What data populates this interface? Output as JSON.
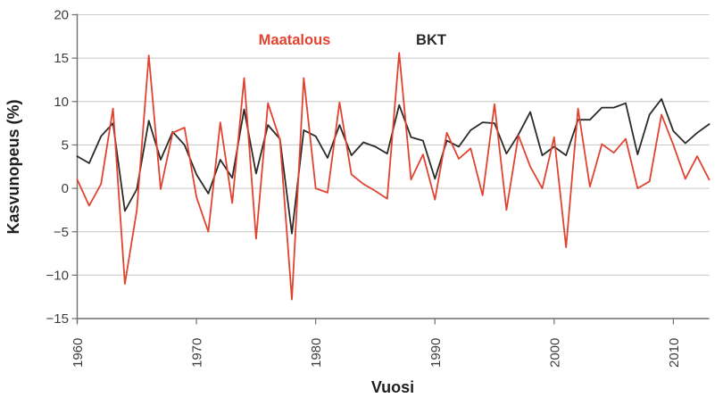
{
  "chart_data": {
    "type": "line",
    "title": "",
    "xlabel": "Vuosi",
    "ylabel": "Kasvunopeus (%)",
    "xlim": [
      1960,
      2013
    ],
    "ylim": [
      -15,
      20
    ],
    "grid": true,
    "legend_position": "top-inline",
    "x_ticks": [
      1960,
      1970,
      1980,
      1990,
      2000,
      2010
    ],
    "y_ticks": [
      20,
      15,
      10,
      5,
      0,
      -5,
      -10,
      -15
    ],
    "years": [
      1960,
      1961,
      1962,
      1963,
      1964,
      1965,
      1966,
      1967,
      1968,
      1969,
      1970,
      1971,
      1972,
      1973,
      1974,
      1975,
      1976,
      1977,
      1978,
      1979,
      1980,
      1981,
      1982,
      1983,
      1984,
      1985,
      1986,
      1987,
      1988,
      1989,
      1990,
      1991,
      1992,
      1993,
      1994,
      1995,
      1996,
      1997,
      1998,
      1999,
      2000,
      2001,
      2002,
      2003,
      2004,
      2005,
      2006,
      2007,
      2008,
      2009,
      2010,
      2011,
      2012,
      2013
    ],
    "series": [
      {
        "name": "Maatalous",
        "color": "#e0432f",
        "values": [
          1.0,
          -2.0,
          0.5,
          9.2,
          -11.0,
          -2.5,
          15.3,
          -0.1,
          6.4,
          7.0,
          -1.0,
          -5.0,
          7.6,
          -1.7,
          12.7,
          -5.8,
          9.8,
          5.6,
          -12.8,
          12.7,
          0.0,
          -0.5,
          9.9,
          1.6,
          0.5,
          -0.3,
          -1.2,
          15.6,
          1.0,
          3.9,
          -1.3,
          6.4,
          3.4,
          4.6,
          -0.8,
          9.7,
          -2.5,
          6.1,
          2.5,
          0.0,
          5.9,
          -6.8,
          9.2,
          0.2,
          5.1,
          4.1,
          5.7,
          0.0,
          0.8,
          8.5,
          5.0,
          1.1,
          3.7,
          1.0
        ]
      },
      {
        "name": "BKT",
        "color": "#2b2a28",
        "values": [
          3.7,
          2.9,
          6.0,
          7.5,
          -2.6,
          -0.1,
          7.8,
          3.3,
          6.5,
          5.0,
          1.6,
          -0.6,
          3.3,
          1.2,
          9.1,
          1.7,
          7.3,
          5.7,
          -5.2,
          6.7,
          6.0,
          3.5,
          7.3,
          3.8,
          5.3,
          4.8,
          4.0,
          9.6,
          5.9,
          5.5,
          1.1,
          5.5,
          4.8,
          6.7,
          7.6,
          7.5,
          4.0,
          6.2,
          8.8,
          3.8,
          4.8,
          3.8,
          7.9,
          7.9,
          9.3,
          9.3,
          9.8,
          3.9,
          8.5,
          10.3,
          6.6,
          5.2,
          6.4,
          7.4
        ]
      }
    ]
  },
  "colors": {
    "background": "#ffffff",
    "grid": "#cccccc",
    "axis": "#6f6f6f",
    "tick_text": "#3c3c3c",
    "maatalous_red": "#e0432f",
    "bkt_black": "#2b2a28"
  }
}
